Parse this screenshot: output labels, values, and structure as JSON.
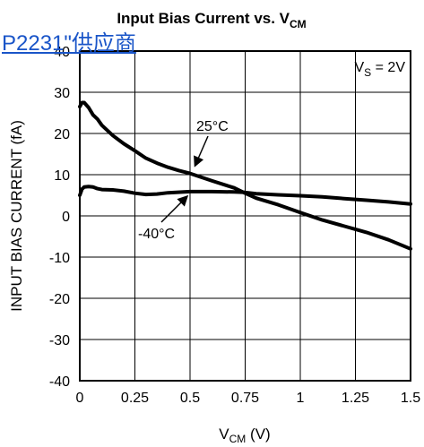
{
  "overlay_link": "P2231\"供应商",
  "chart_data": {
    "type": "line",
    "title": "Input Bias Current vs. V",
    "title_sub": "CM",
    "xlabel": "V",
    "xlabel_sub": "CM",
    "xlabel_unit": " (V)",
    "ylabel": "INPUT BIAS CURRENT (fA)",
    "xlim": [
      0,
      1.5
    ],
    "ylim": [
      -40,
      40
    ],
    "xticks": [
      "0",
      "0.25",
      "0.5",
      "0.75",
      "1",
      "1.25",
      "1.5"
    ],
    "xtick_values": [
      0,
      0.25,
      0.5,
      0.75,
      1,
      1.25,
      1.5
    ],
    "yticks": [
      "40",
      "30",
      "20",
      "10",
      "0",
      "-10",
      "-20",
      "-30",
      "-40"
    ],
    "ytick_values": [
      40,
      30,
      20,
      10,
      0,
      -10,
      -20,
      -30,
      -40
    ],
    "grid": true,
    "condition_label": {
      "main": "V",
      "sub": "S",
      "rest": " = 2V"
    },
    "series": [
      {
        "name": "25°C",
        "x": [
          0,
          0.01,
          0.02,
          0.04,
          0.06,
          0.08,
          0.1,
          0.15,
          0.2,
          0.25,
          0.3,
          0.35,
          0.4,
          0.45,
          0.5,
          0.6,
          0.7,
          0.75,
          0.8,
          0.9,
          1.0,
          1.1,
          1.2,
          1.3,
          1.4,
          1.5
        ],
        "y": [
          26.5,
          27.5,
          27.5,
          26.3,
          24.5,
          23.5,
          22,
          19.5,
          17.5,
          15.8,
          14,
          12.8,
          11.8,
          11,
          10.3,
          8.5,
          6.8,
          5.5,
          4.3,
          2.7,
          0.8,
          -1,
          -2.5,
          -4,
          -5.8,
          -8
        ]
      },
      {
        "name": "-40°C",
        "x": [
          0,
          0.01,
          0.02,
          0.04,
          0.06,
          0.08,
          0.1,
          0.15,
          0.2,
          0.25,
          0.3,
          0.35,
          0.4,
          0.5,
          0.6,
          0.7,
          0.75,
          0.8,
          0.9,
          1.0,
          1.1,
          1.2,
          1.3,
          1.4,
          1.5
        ],
        "y": [
          5,
          6.5,
          7,
          7.1,
          7,
          6.6,
          6.4,
          6.3,
          6,
          5.5,
          5.2,
          5.3,
          5.6,
          5.9,
          5.9,
          5.8,
          5.7,
          5.4,
          5.1,
          4.9,
          4.6,
          4.2,
          3.8,
          3.4,
          2.9
        ]
      }
    ],
    "annotations": [
      {
        "text": "25°C",
        "series": "25°C"
      },
      {
        "text": "-40°C",
        "series": "-40°C"
      }
    ]
  }
}
